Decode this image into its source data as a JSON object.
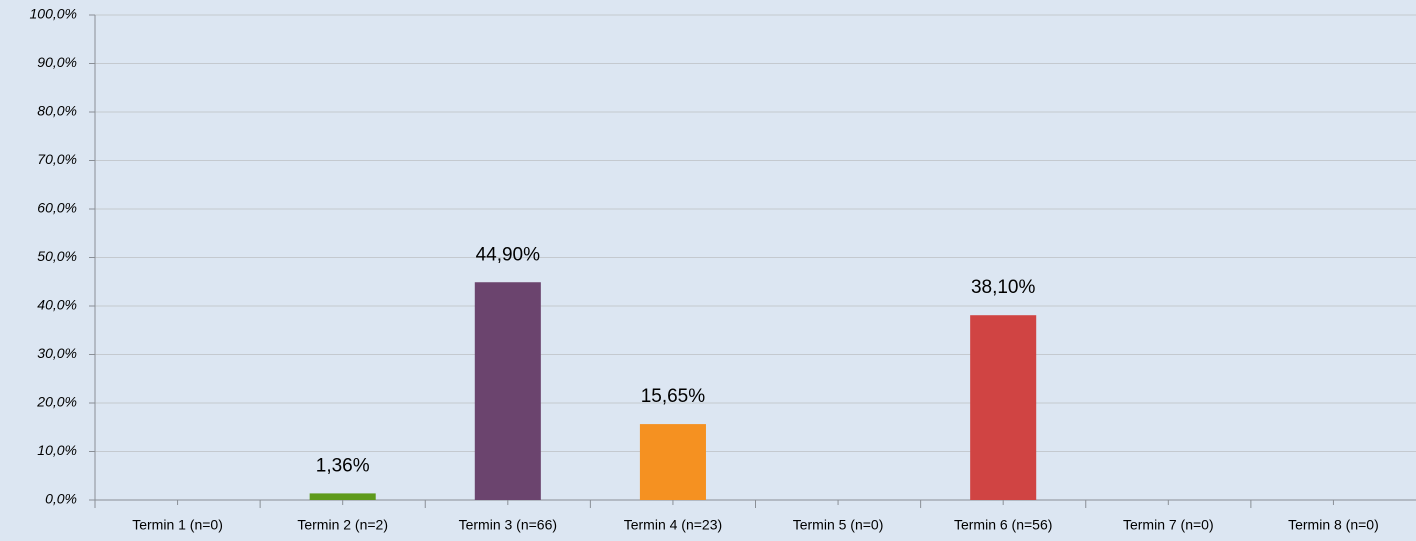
{
  "chart_data": {
    "type": "bar",
    "categories": [
      "Termin 1  (n=0)",
      "Termin 2 (n=2)",
      "Termin 3 (n=66)",
      "Termin 4 (n=23)",
      "Termin 5 (n=0)",
      "Termin 6 (n=56)",
      "Termin 7 (n=0)",
      "Termin 8 (n=0)"
    ],
    "values": [
      0,
      1.36,
      44.9,
      15.65,
      0,
      38.1,
      0,
      0
    ],
    "value_labels": [
      null,
      "1,36%",
      "44,90%",
      "15,65%",
      null,
      "38,10%",
      null,
      null
    ],
    "colors": [
      null,
      "#5e9a1c",
      "#6b446e",
      "#f59121",
      null,
      "#d04443",
      null,
      null
    ],
    "ylim": [
      0,
      100
    ],
    "yticks": [
      {
        "value": 0,
        "label": "0,0%"
      },
      {
        "value": 10,
        "label": "10,0%"
      },
      {
        "value": 20,
        "label": "20,0%"
      },
      {
        "value": 30,
        "label": "30,0%"
      },
      {
        "value": 40,
        "label": "40,0%"
      },
      {
        "value": 50,
        "label": "50,0%"
      },
      {
        "value": 60,
        "label": "60,0%"
      },
      {
        "value": 70,
        "label": "70,0%"
      },
      {
        "value": 80,
        "label": "80,0%"
      },
      {
        "value": 90,
        "label": "90,0%"
      },
      {
        "value": 100,
        "label": "100,0%"
      }
    ],
    "grid": true
  }
}
